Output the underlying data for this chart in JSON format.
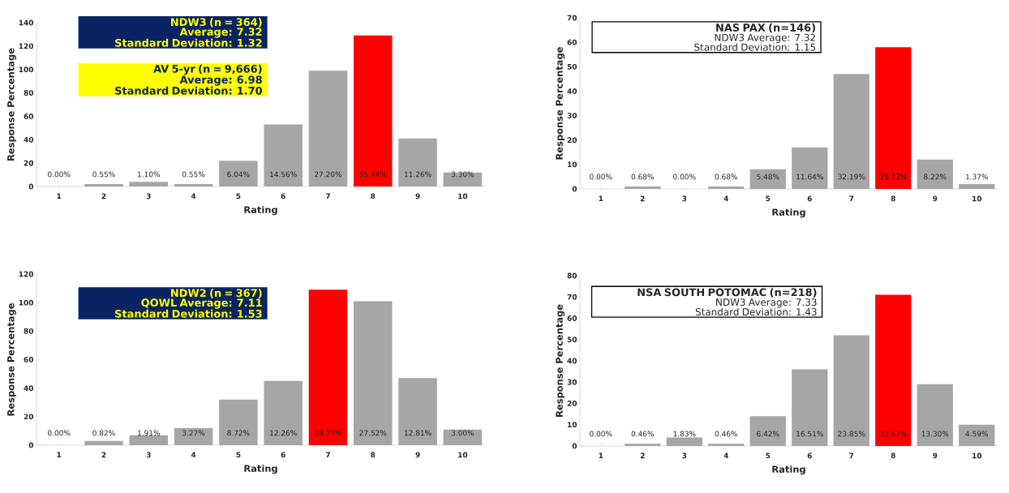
{
  "chart_data": [
    {
      "type": "bar",
      "xlabel": "Rating",
      "ylabel": "Response Percentage",
      "categories": [
        "1",
        "2",
        "3",
        "4",
        "5",
        "6",
        "7",
        "8",
        "9",
        "10"
      ],
      "values": [
        0,
        2,
        4,
        2,
        22,
        53,
        99,
        129,
        41,
        12
      ],
      "colors": [
        "#a6a6a6",
        "#a6a6a6",
        "#a6a6a6",
        "#a6a6a6",
        "#a6a6a6",
        "#a6a6a6",
        "#a6a6a6",
        "#ff0000",
        "#a6a6a6",
        "#a6a6a6"
      ],
      "ylim": [
        0,
        140
      ],
      "yticks": [
        0,
        20,
        40,
        60,
        80,
        100,
        120,
        140
      ],
      "annotations": [
        "NDW3 (n = 364)",
        "Average: 7.32",
        "Standard Deviation: 1.32",
        "AV 5-yr (n = 9,666)",
        "Average: 6.98",
        "Standard Deviation: 1.70",
        "0.00%",
        "0.55%",
        "1.10%",
        "0.55%",
        "6.04%",
        "14.56%",
        "27.20%",
        "35.44%",
        "11.26%",
        "3.30%"
      ]
    },
    {
      "type": "bar",
      "xlabel": "Rating",
      "ylabel": "Response Percentage",
      "categories": [
        "1",
        "2",
        "3",
        "4",
        "5",
        "6",
        "7",
        "8",
        "9",
        "10"
      ],
      "values": [
        0,
        1,
        0,
        1,
        8,
        17,
        47,
        58,
        12,
        2
      ],
      "colors": [
        "#a6a6a6",
        "#a6a6a6",
        "#a6a6a6",
        "#a6a6a6",
        "#a6a6a6",
        "#a6a6a6",
        "#a6a6a6",
        "#ff0000",
        "#a6a6a6",
        "#a6a6a6"
      ],
      "ylim": [
        0,
        70
      ],
      "yticks": [
        0,
        10,
        20,
        30,
        40,
        50,
        60,
        70
      ],
      "annotations": [
        "NAS PAX  (n=146)",
        "NDW3 Average:   7.32",
        "Standard Deviation:   1.15",
        "0.00%",
        "0.68%",
        "0.00%",
        "0.68%",
        "5.48%",
        "11.64%",
        "32.19%",
        "39.73%",
        "8.22%",
        "1.37%"
      ]
    },
    {
      "type": "bar",
      "xlabel": "Rating",
      "ylabel": "Response Percentage",
      "categories": [
        "1",
        "2",
        "3",
        "4",
        "5",
        "6",
        "7",
        "8",
        "9",
        "10"
      ],
      "values": [
        0,
        3,
        7,
        12,
        32,
        45,
        109,
        101,
        47,
        11
      ],
      "colors": [
        "#a6a6a6",
        "#a6a6a6",
        "#a6a6a6",
        "#a6a6a6",
        "#a6a6a6",
        "#a6a6a6",
        "#ff0000",
        "#a6a6a6",
        "#a6a6a6",
        "#a6a6a6"
      ],
      "ylim": [
        0,
        120
      ],
      "yticks": [
        0,
        20,
        40,
        60,
        80,
        100,
        120
      ],
      "annotations": [
        "NDW2 (n = 367)",
        "QOWL Average: 7.11",
        "Standard Deviation: 1.53",
        "0.00%",
        "0.82%",
        "1.91%",
        "3.27%",
        "8.72%",
        "12.26%",
        "29.70%",
        "27.52%",
        "12.81%",
        "3.00%"
      ]
    },
    {
      "type": "bar",
      "xlabel": "Rating",
      "ylabel": "Response Percentage",
      "categories": [
        "1",
        "2",
        "3",
        "4",
        "5",
        "6",
        "7",
        "8",
        "9",
        "10"
      ],
      "values": [
        0,
        1,
        4,
        1,
        14,
        36,
        52,
        71,
        29,
        10
      ],
      "colors": [
        "#a6a6a6",
        "#a6a6a6",
        "#a6a6a6",
        "#a6a6a6",
        "#a6a6a6",
        "#a6a6a6",
        "#a6a6a6",
        "#ff0000",
        "#a6a6a6",
        "#a6a6a6"
      ],
      "ylim": [
        0,
        80
      ],
      "yticks": [
        0,
        10,
        20,
        30,
        40,
        50,
        60,
        70,
        80
      ],
      "annotations": [
        "NSA SOUTH POTOMAC  (n=218)",
        "NDW3 Average:   7.33",
        "Standard Deviation:   1.43",
        "0.00%",
        "0.46%",
        "1.83%",
        "0.46%",
        "6.42%",
        "16.51%",
        "23.85%",
        "32.57%",
        "13.30%",
        "4.59%"
      ]
    }
  ]
}
